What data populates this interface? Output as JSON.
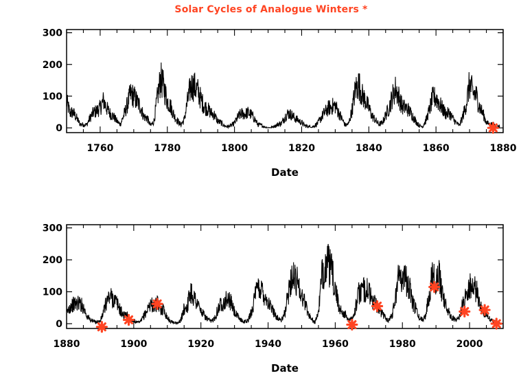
{
  "title": "Solar Cycles of Analogue Winters *",
  "colors": {
    "series": "#000000",
    "marker": "#ff4422",
    "frame": "#000000",
    "background": "#ffffff"
  },
  "chart_data": [
    {
      "type": "line",
      "xlabel": "Date",
      "ylabel": "",
      "xlim": [
        1750,
        1880
      ],
      "ylim": [
        -15,
        310
      ],
      "xticks": [
        1760,
        1780,
        1800,
        1820,
        1840,
        1860,
        1880
      ],
      "yticks": [
        0,
        100,
        200,
        300
      ],
      "grid": false,
      "series": [
        {
          "x": [
            1750,
            1751,
            1752,
            1753,
            1754,
            1755,
            1756,
            1757,
            1758,
            1759,
            1760,
            1761,
            1762,
            1763,
            1764,
            1765,
            1766,
            1767,
            1768,
            1769,
            1770,
            1771,
            1772,
            1773,
            1774,
            1775,
            1776,
            1777,
            1778,
            1779,
            1780,
            1781,
            1782,
            1783,
            1784,
            1785,
            1786,
            1787,
            1788,
            1789,
            1790,
            1791,
            1792,
            1793,
            1794,
            1795,
            1796,
            1797,
            1798,
            1799,
            1800,
            1801,
            1802,
            1803,
            1804,
            1805,
            1806,
            1807,
            1808,
            1809,
            1810,
            1811,
            1812,
            1813,
            1814,
            1815,
            1816,
            1817,
            1818,
            1819,
            1820,
            1821,
            1822,
            1823,
            1824,
            1825,
            1826,
            1827,
            1828,
            1829,
            1830,
            1831,
            1832,
            1833,
            1834,
            1835,
            1836,
            1837,
            1838,
            1839,
            1840,
            1841,
            1842,
            1843,
            1844,
            1845,
            1846,
            1847,
            1848,
            1849,
            1850,
            1851,
            1852,
            1853,
            1854,
            1855,
            1856,
            1857,
            1858,
            1859,
            1860,
            1861,
            1862,
            1863,
            1864,
            1865,
            1866,
            1867,
            1868,
            1869,
            1870,
            1871,
            1872,
            1873,
            1874,
            1875,
            1876,
            1877,
            1878,
            1879
          ],
          "values": [
            83,
            48,
            48,
            31,
            12,
            10,
            10,
            32,
            48,
            54,
            63,
            86,
            61,
            45,
            36,
            21,
            11,
            38,
            70,
            106,
            101,
            82,
            67,
            35,
            31,
            7,
            20,
            93,
            155,
            126,
            85,
            68,
            38,
            23,
            10,
            24,
            83,
            132,
            131,
            118,
            90,
            67,
            60,
            47,
            41,
            21,
            16,
            6,
            4,
            7,
            15,
            34,
            45,
            43,
            48,
            42,
            28,
            10,
            8,
            2,
            0,
            1,
            5,
            12,
            14,
            35,
            46,
            41,
            30,
            24,
            16,
            7,
            4,
            2,
            8,
            17,
            36,
            50,
            62,
            67,
            71,
            48,
            28,
            8,
            13,
            57,
            122,
            138,
            103,
            86,
            63,
            37,
            24,
            11,
            15,
            40,
            62,
            98,
            124,
            96,
            66,
            64,
            54,
            39,
            21,
            7,
            4,
            23,
            55,
            94,
            96,
            77,
            59,
            44,
            47,
            30,
            16,
            7,
            37,
            74,
            139,
            111,
            102,
            66,
            45,
            17,
            11,
            12,
            3,
            6
          ]
        }
      ],
      "markers": [
        {
          "x": 1877,
          "y": 0
        }
      ]
    },
    {
      "type": "line",
      "xlabel": "Date",
      "ylabel": "",
      "xlim": [
        1880,
        2010
      ],
      "ylim": [
        -15,
        310
      ],
      "xticks": [
        1880,
        1900,
        1920,
        1940,
        1960,
        1980,
        2000
      ],
      "yticks": [
        0,
        100,
        200,
        300
      ],
      "grid": false,
      "series": [
        {
          "x": [
            1880,
            1881,
            1882,
            1883,
            1884,
            1885,
            1886,
            1887,
            1888,
            1889,
            1890,
            1891,
            1892,
            1893,
            1894,
            1895,
            1896,
            1897,
            1898,
            1899,
            1900,
            1901,
            1902,
            1903,
            1904,
            1905,
            1906,
            1907,
            1908,
            1909,
            1910,
            1911,
            1912,
            1913,
            1914,
            1915,
            1916,
            1917,
            1918,
            1919,
            1920,
            1921,
            1922,
            1923,
            1924,
            1925,
            1926,
            1927,
            1928,
            1929,
            1930,
            1931,
            1932,
            1933,
            1934,
            1935,
            1936,
            1937,
            1938,
            1939,
            1940,
            1941,
            1942,
            1943,
            1944,
            1945,
            1946,
            1947,
            1948,
            1949,
            1950,
            1951,
            1952,
            1953,
            1954,
            1955,
            1956,
            1957,
            1958,
            1959,
            1960,
            1961,
            1962,
            1963,
            1964,
            1965,
            1966,
            1967,
            1968,
            1969,
            1970,
            1971,
            1972,
            1973,
            1974,
            1975,
            1976,
            1977,
            1978,
            1979,
            1980,
            1981,
            1982,
            1983,
            1984,
            1985,
            1986,
            1987,
            1988,
            1989,
            1990,
            1991,
            1992,
            1993,
            1994,
            1995,
            1996,
            1997,
            1998,
            1999,
            2000,
            2001,
            2002,
            2003,
            2004,
            2005,
            2006,
            2007,
            2008,
            2009
          ],
          "values": [
            32,
            54,
            60,
            64,
            64,
            52,
            25,
            13,
            7,
            6,
            7,
            36,
            73,
            85,
            78,
            64,
            42,
            26,
            27,
            12,
            10,
            3,
            5,
            24,
            42,
            64,
            54,
            62,
            48,
            44,
            19,
            6,
            4,
            1,
            10,
            47,
            57,
            104,
            81,
            64,
            38,
            26,
            14,
            6,
            17,
            44,
            64,
            69,
            78,
            65,
            36,
            21,
            11,
            6,
            9,
            36,
            80,
            114,
            110,
            89,
            68,
            48,
            31,
            16,
            10,
            33,
            93,
            152,
            136,
            135,
            84,
            69,
            31,
            14,
            4,
            38,
            142,
            190,
            185,
            159,
            112,
            54,
            38,
            28,
            10,
            15,
            47,
            94,
            106,
            106,
            105,
            67,
            69,
            38,
            35,
            16,
            13,
            28,
            93,
            155,
            155,
            141,
            116,
            67,
            46,
            18,
            13,
            29,
            100,
            158,
            142,
            146,
            94,
            55,
            30,
            18,
            9,
            22,
            64,
            93,
            120,
            111,
            104,
            64,
            40,
            30,
            15,
            8,
            3,
            3
          ]
        }
      ],
      "markers": [
        {
          "x": 1890.5,
          "y": -10
        },
        {
          "x": 1898.5,
          "y": 12
        },
        {
          "x": 1907,
          "y": 62
        },
        {
          "x": 1965,
          "y": -3
        },
        {
          "x": 1972.5,
          "y": 55
        },
        {
          "x": 1989.5,
          "y": 115
        },
        {
          "x": 1998.5,
          "y": 38
        },
        {
          "x": 2004.5,
          "y": 43
        },
        {
          "x": 2008,
          "y": 0
        }
      ]
    }
  ]
}
